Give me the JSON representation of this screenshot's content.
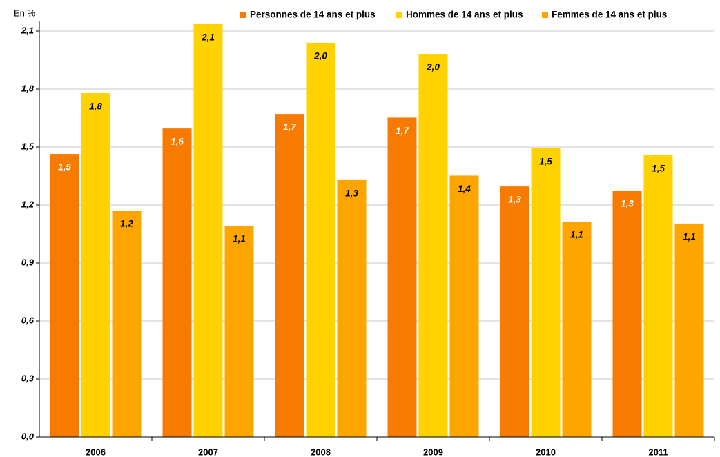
{
  "chart_data": {
    "type": "bar",
    "y_label": "En %",
    "categories": [
      "2006",
      "2007",
      "2008",
      "2009",
      "2010",
      "2011"
    ],
    "series": [
      {
        "name": "Personnes de 14 ans et plus",
        "color": "#f77b00",
        "values": [
          1.464,
          1.596,
          1.671,
          1.652,
          1.296,
          1.275
        ],
        "value_labels": [
          "1,5",
          "1,6",
          "1,7",
          "1,7",
          "1,3",
          "1,3"
        ]
      },
      {
        "name": "Hommes de 14 ans et plus",
        "color": "#ffd200",
        "values": [
          1.779,
          2.136,
          2.039,
          1.982,
          1.493,
          1.457
        ],
        "value_labels": [
          "1,8",
          "2,1",
          "2,0",
          "2,0",
          "1,5",
          "1,5"
        ]
      },
      {
        "name": "Femmes de 14 ans et plus",
        "color": "#ffa500",
        "values": [
          1.171,
          1.093,
          1.329,
          1.352,
          1.114,
          1.104
        ],
        "value_labels": [
          "1,2",
          "1,1",
          "1,3",
          "1,4",
          "1,1",
          "1,1"
        ]
      }
    ],
    "ylim": [
      0,
      2.15
    ],
    "yticks": [
      {
        "value": 0,
        "label": "0,0"
      },
      {
        "value": 0.3,
        "label": "0,3"
      },
      {
        "value": 0.6,
        "label": "0,6"
      },
      {
        "value": 0.9,
        "label": "0,9"
      },
      {
        "value": 1.2,
        "label": "1,2"
      },
      {
        "value": 1.5,
        "label": "1,5"
      },
      {
        "value": 1.8,
        "label": "1,8"
      },
      {
        "value": 2.1,
        "label": "2,1"
      }
    ],
    "grid": true,
    "legend": "top-right"
  }
}
